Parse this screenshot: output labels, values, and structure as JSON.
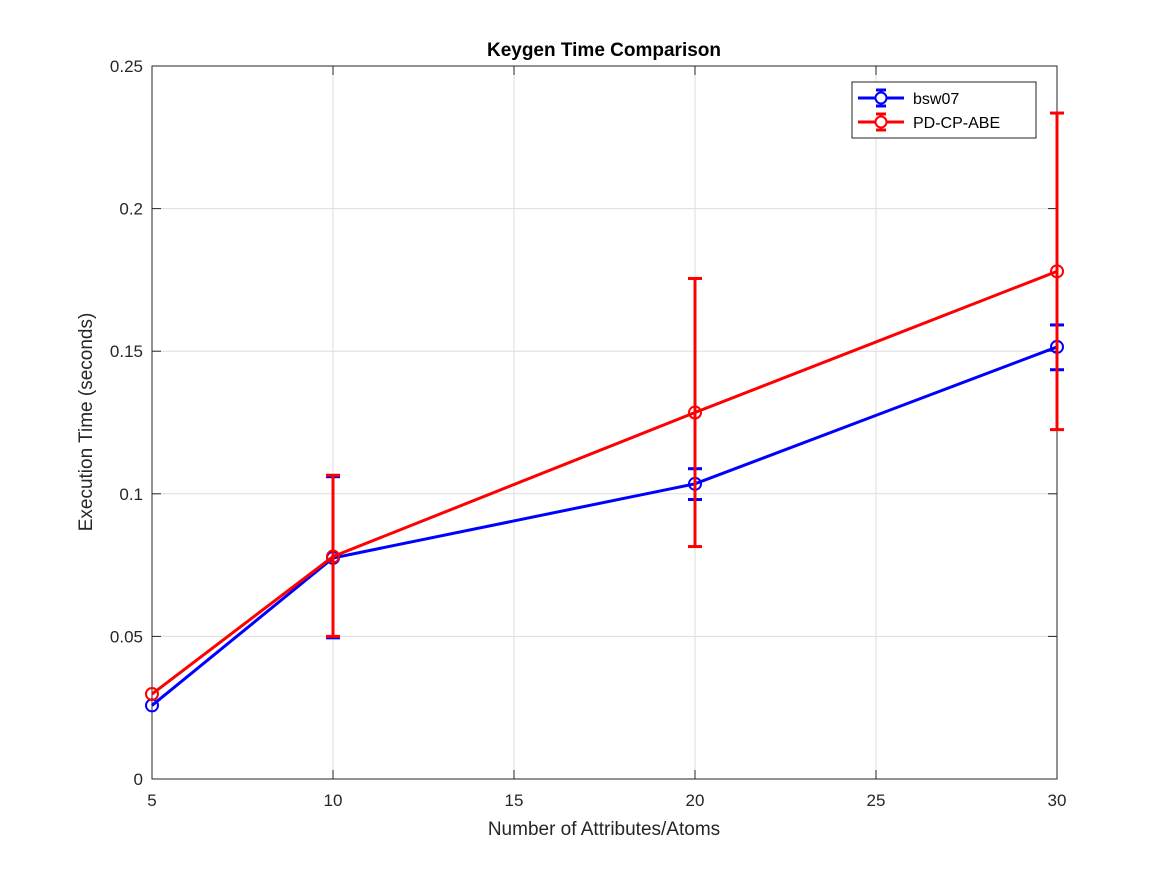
{
  "chart_data": {
    "type": "line",
    "title": "Keygen Time Comparison",
    "xlabel": "Number of Attributes/Atoms",
    "ylabel": "Execution Time (seconds)",
    "xlim": [
      5,
      30
    ],
    "ylim": [
      0,
      0.25
    ],
    "xticks": [
      5,
      10,
      15,
      20,
      25,
      30
    ],
    "yticks": [
      0,
      0.05,
      0.1,
      0.15,
      0.2,
      0.25
    ],
    "xtick_labels": [
      "5",
      "10",
      "15",
      "20",
      "25",
      "30"
    ],
    "ytick_labels": [
      "0",
      "0.05",
      "0.1",
      "0.15",
      "0.2",
      "0.25"
    ],
    "grid": true,
    "legend_position": "top-right",
    "x": [
      5,
      10,
      20,
      30
    ],
    "series": [
      {
        "name": "bsw07",
        "color": "#0000ff",
        "marker": "circle",
        "values": [
          0.0258,
          0.0775,
          0.1035,
          0.1515
        ],
        "err_low": [
          0.0258,
          0.0495,
          0.098,
          0.1435
        ],
        "err_high": [
          0.0258,
          0.106,
          0.1088,
          0.1592
        ]
      },
      {
        "name": "PD-CP-ABE",
        "color": "#ff0000",
        "marker": "circle",
        "values": [
          0.0298,
          0.078,
          0.1285,
          0.178
        ],
        "err_low": [
          0.0298,
          0.05,
          0.0815,
          0.1225
        ],
        "err_high": [
          0.0298,
          0.1065,
          0.1755,
          0.2335
        ]
      }
    ]
  }
}
